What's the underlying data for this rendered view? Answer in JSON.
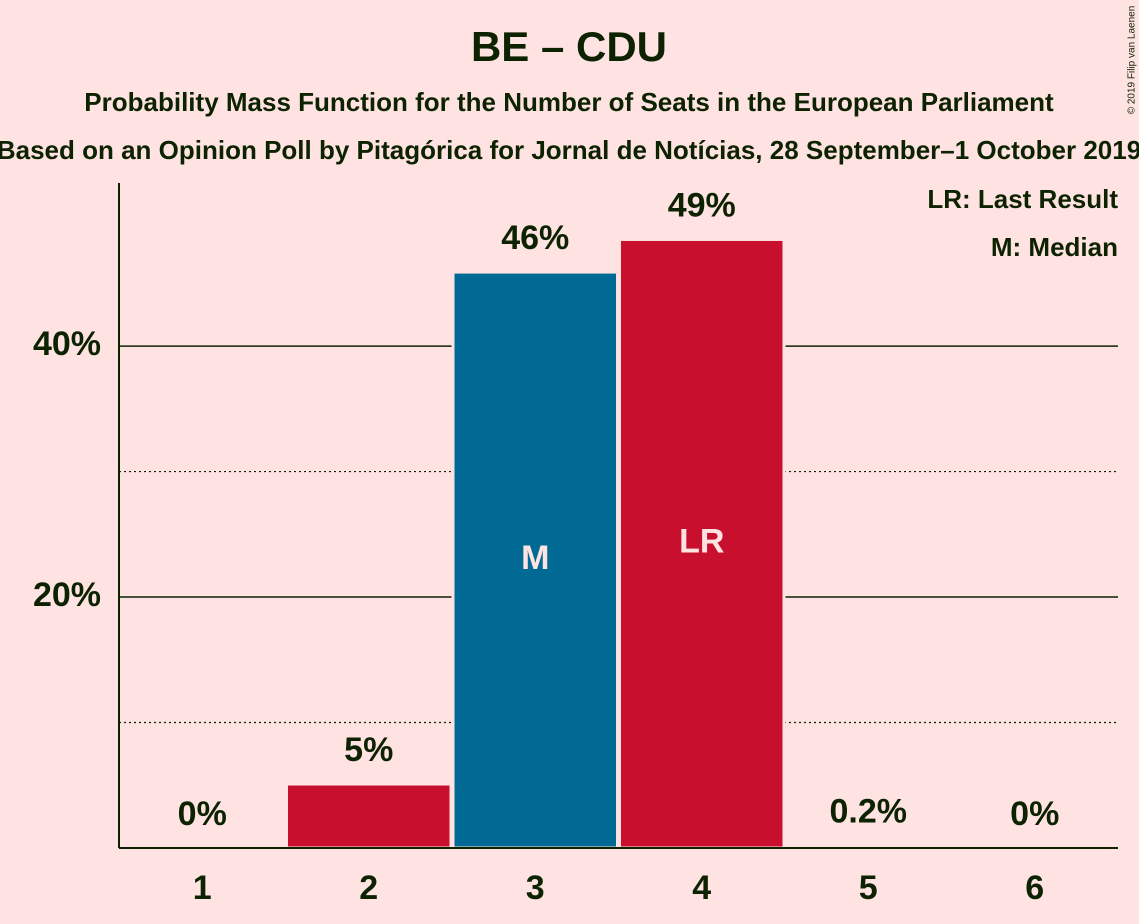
{
  "chart_data": {
    "type": "bar",
    "title": "BE – CDU",
    "subtitle": "Probability Mass Function for the Number of Seats in the European Parliament",
    "caption": "Based on an Opinion Poll by Pitagórica for Jornal de Notícias, 28 September–1 October 2019",
    "copyright": "© 2019 Filip van Laenen",
    "categories": [
      "1",
      "2",
      "3",
      "4",
      "5",
      "6"
    ],
    "values": [
      0,
      5.1,
      45.9,
      48.5,
      0.2,
      0
    ],
    "value_labels": [
      "0%",
      "5%",
      "46%",
      "49%",
      "0.2%",
      "0%"
    ],
    "colors": [
      "#c8102e",
      "#c8102e",
      "#006a94",
      "#c8102e",
      "#006a94",
      "#c8102e"
    ],
    "bar_annotations": [
      null,
      null,
      "M",
      "LR",
      null,
      null
    ],
    "legend": [
      "LR: Last Result",
      "M: Median"
    ],
    "ylim": [
      0,
      53
    ],
    "yticks": [
      {
        "value": 20,
        "label": "20%"
      },
      {
        "value": 40,
        "label": "40%"
      }
    ],
    "minor_gridlines": [
      10,
      30
    ],
    "grid": true
  }
}
